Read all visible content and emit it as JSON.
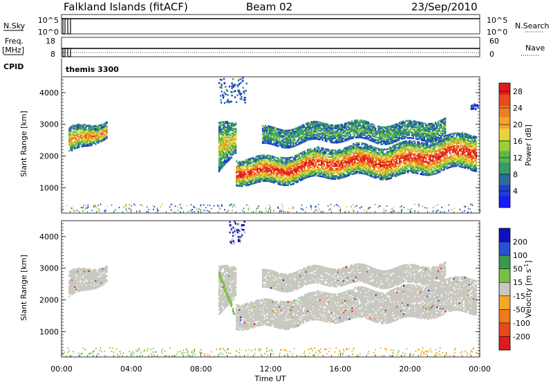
{
  "header": {
    "station": "Falkland Islands (fitACF)",
    "beam": "Beam 02",
    "date": "23/Sep/2010"
  },
  "strips": {
    "nsky_label": "N.Sky",
    "nsearch_label": "N.Search",
    "freq_label_line1": "Freq.",
    "freq_label_line2": "[MHz]",
    "nave_label": "Nave",
    "cpid_label": "CPID",
    "cpid_value": "themis 3300",
    "noise_left_ticks": [
      "10^5",
      "10^0"
    ],
    "noise_right_ticks": [
      "10^5",
      "10^0"
    ],
    "freq_left_ticks": [
      "18",
      "8"
    ],
    "freq_right_ticks": [
      "60",
      "0"
    ]
  },
  "chart_data": [
    {
      "type": "heatmap",
      "ylabel": "Slant Range [km]",
      "ylim": [
        200,
        4500
      ],
      "yticks": [
        "1000",
        "2000",
        "3000",
        "4000"
      ],
      "xlim": [
        0,
        24
      ],
      "colorbar": {
        "label": "Power [dB]",
        "ticks": [
          "4",
          "8",
          "12",
          "16",
          "20",
          "24",
          "28"
        ],
        "colors": [
          "#1a1aff",
          "#1d3fd0",
          "#2a6e9c",
          "#3a9a66",
          "#5bb84a",
          "#9ad03a",
          "#e8d23a",
          "#f2a52a",
          "#f07d22",
          "#ea4a1d",
          "#e01b1b"
        ]
      },
      "bands": [
        {
          "start": 0.4,
          "end": 2.6,
          "lo": 2150,
          "hi": 2700,
          "lo2": 2700,
          "hi2": 2950,
          "core_level": 0.65
        },
        {
          "start": 9.0,
          "end": 10.0,
          "lo": 1500,
          "hi": 2800,
          "lo2": 2300,
          "hi2": 3000,
          "core_level": 0.5
        },
        {
          "start": 10.0,
          "end": 23.8,
          "lo": 1250,
          "hi": 1800,
          "lo2": 1700,
          "hi2": 2550,
          "core_level": 0.85
        },
        {
          "start": 11.5,
          "end": 22.0,
          "lo": 2500,
          "hi": 2800,
          "lo2": 2700,
          "hi2": 3000,
          "core_level": 0.25
        }
      ]
    },
    {
      "type": "heatmap",
      "ylabel": "Slant Range [km]",
      "ylim": [
        200,
        4500
      ],
      "yticks": [
        "1000",
        "2000",
        "3000",
        "4000"
      ],
      "xlim": [
        0,
        24
      ],
      "xticks": [
        "00:00",
        "04:00",
        "08:00",
        "12:00",
        "16:00",
        "20:00",
        "00:00"
      ],
      "xlabel": "Time UT",
      "colorbar": {
        "label": "Velocity [m s^-1]",
        "ticks": [
          "200",
          "100",
          "50",
          "15",
          "-15",
          "-50",
          "-100",
          "-200"
        ],
        "colors": [
          "#1010c0",
          "#2850d0",
          "#3a9a50",
          "#7ac040",
          "#c8c8c0",
          "#f5a623",
          "#ef7a1a",
          "#e84a1a",
          "#e01b1b"
        ]
      },
      "ground_scatter_color": "#c8c8c0"
    }
  ]
}
